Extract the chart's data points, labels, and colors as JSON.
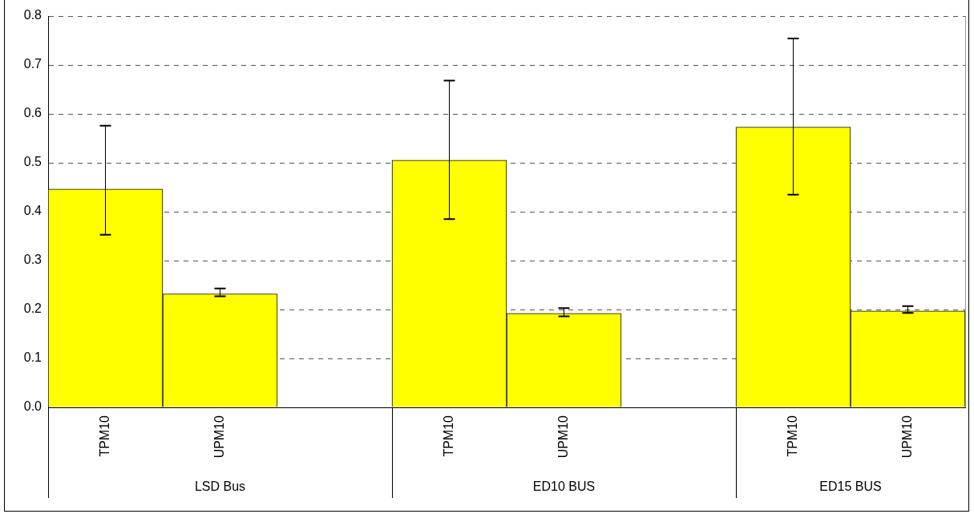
{
  "chart_data": {
    "type": "bar",
    "categories": [
      "TPM10",
      "UPM10",
      null,
      "TPM10",
      "UPM10",
      null,
      "TPM10",
      "UPM10"
    ],
    "values": [
      0.446,
      0.232,
      null,
      0.505,
      0.192,
      null,
      0.573,
      0.197
    ],
    "errors": [
      [
        0.353,
        0.576
      ],
      [
        0.227,
        0.243
      ],
      null,
      [
        0.385,
        0.668
      ],
      [
        0.186,
        0.203
      ],
      null,
      [
        0.435,
        0.754
      ],
      [
        0.193,
        0.207
      ]
    ],
    "color": "#ffff00",
    "ylim": [
      0,
      0.8
    ],
    "yticks": [
      {
        "value": 0,
        "label": "0.0"
      },
      0.1,
      0.2,
      0.3,
      0.4,
      0.5,
      0.6,
      0.7,
      0.8
    ],
    "grid": "y",
    "legend": false,
    "annotations": [
      "LSD Bus",
      "ED10 BUS",
      "ED15 BUS"
    ]
  }
}
